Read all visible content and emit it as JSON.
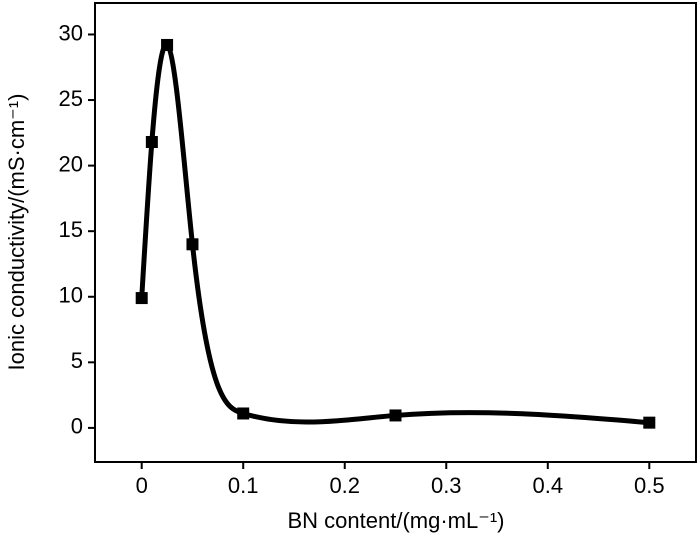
{
  "chart_data": {
    "type": "line",
    "x_label": "BN content/(mg·mL⁻¹)",
    "y_label": "Ionic conductivity/(mS·cm⁻¹)",
    "series": [
      {
        "color": "#000000",
        "x": [
          0,
          0.01,
          0.025,
          0.05,
          0.1,
          0.25,
          0.5
        ],
        "values": [
          9.9,
          21.8,
          29.2,
          14.0,
          1.1,
          0.95,
          0.4
        ]
      }
    ],
    "xlim": [
      -0.046,
      0.546
    ],
    "xticks": [
      0,
      0.1,
      0.2,
      0.3,
      0.4,
      0.5
    ],
    "ylim": [
      -2.6,
      32.4
    ],
    "yticks": [
      0,
      5,
      10,
      15,
      20,
      25,
      30
    ],
    "smooth": true,
    "markers": "square"
  }
}
